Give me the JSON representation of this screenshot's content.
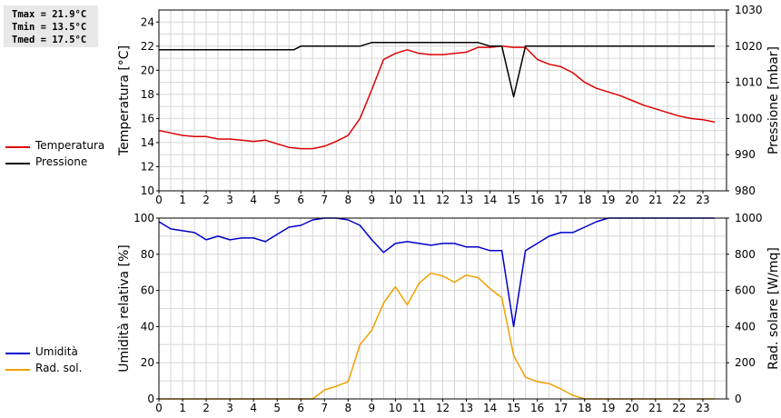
{
  "stats": {
    "tmax": "Tmax = 21.9°C",
    "tmin": "Tmin = 13.5°C",
    "tmed": "Tmed = 17.5°C"
  },
  "legend_top": [
    {
      "label": "Temperatura",
      "color": "#dd0000"
    },
    {
      "label": "Pressione",
      "color": "#000000"
    }
  ],
  "legend_bottom": [
    {
      "label": "Umidità",
      "color": "#0000cc"
    },
    {
      "label": "Rad. sol.",
      "color": "#f0a000"
    }
  ],
  "chart_data": [
    {
      "type": "line",
      "xlim": [
        0,
        24
      ],
      "x_ticks": [
        0,
        1,
        2,
        3,
        4,
        5,
        6,
        7,
        8,
        9,
        10,
        11,
        12,
        13,
        14,
        15,
        16,
        17,
        18,
        19,
        20,
        21,
        22,
        23
      ],
      "ylabel": "Temperatura [°C]",
      "ylim": [
        10,
        25
      ],
      "y_ticks": [
        10,
        12,
        14,
        16,
        18,
        20,
        22,
        24
      ],
      "y2label": "Pressione [mbar]",
      "y2lim": [
        980,
        1030
      ],
      "y2_ticks": [
        980,
        990,
        1000,
        1010,
        1020,
        1030
      ],
      "grid": true,
      "series": [
        {
          "name": "Temperatura",
          "axis": "left",
          "color": "#dd0000",
          "x": [
            0,
            0.5,
            1,
            1.5,
            2,
            2.5,
            3,
            3.5,
            4,
            4.5,
            5,
            5.5,
            6,
            6.5,
            7,
            7.5,
            8,
            8.5,
            9,
            9.5,
            10,
            10.5,
            11,
            11.5,
            12,
            12.5,
            13,
            13.5,
            14,
            14.5,
            15,
            15.5,
            16,
            16.5,
            17,
            17.5,
            18,
            18.5,
            19,
            19.5,
            20,
            20.5,
            21,
            21.5,
            22,
            22.5,
            23,
            23.5
          ],
          "values": [
            15.0,
            14.8,
            14.6,
            14.5,
            14.5,
            14.3,
            14.3,
            14.2,
            14.1,
            14.2,
            13.9,
            13.6,
            13.5,
            13.5,
            13.7,
            14.1,
            14.6,
            16.0,
            18.4,
            20.9,
            21.4,
            21.7,
            21.4,
            21.3,
            21.3,
            21.4,
            21.5,
            21.9,
            21.9,
            22.0,
            21.9,
            21.9,
            20.9,
            20.5,
            20.3,
            19.8,
            19.0,
            18.5,
            18.2,
            17.9,
            17.5,
            17.1,
            16.8,
            16.5,
            16.2,
            16.0,
            15.9,
            15.7
          ]
        },
        {
          "name": "Pressione",
          "axis": "right",
          "color": "#000000",
          "x": [
            0,
            5.7,
            6,
            6.5,
            8.5,
            9,
            9.5,
            13.5,
            14,
            14.5,
            15,
            15.5,
            23.5
          ],
          "values": [
            1019,
            1019,
            1020,
            1020,
            1020,
            1021,
            1021,
            1021,
            1020,
            1020,
            1006,
            1020,
            1020
          ]
        }
      ]
    },
    {
      "type": "line",
      "xlim": [
        0,
        24
      ],
      "x_ticks": [
        0,
        1,
        2,
        3,
        4,
        5,
        6,
        7,
        8,
        9,
        10,
        11,
        12,
        13,
        14,
        15,
        16,
        17,
        18,
        19,
        20,
        21,
        22,
        23
      ],
      "ylabel": "Umidità relativa [%]",
      "ylim": [
        0,
        100
      ],
      "y_ticks": [
        0,
        20,
        40,
        60,
        80,
        100
      ],
      "y2label": "Rad. solare [W/mq]",
      "y2lim": [
        0,
        1000
      ],
      "y2_ticks": [
        0,
        200,
        400,
        600,
        800,
        1000
      ],
      "grid": true,
      "series": [
        {
          "name": "Umidità",
          "axis": "left",
          "color": "#0000cc",
          "x": [
            0,
            0.5,
            1,
            1.5,
            2,
            2.5,
            3,
            3.5,
            4,
            4.5,
            5,
            5.5,
            6,
            6.5,
            7,
            7.5,
            8,
            8.5,
            9,
            9.5,
            10,
            10.5,
            11,
            11.5,
            12,
            12.5,
            13,
            13.5,
            14,
            14.5,
            15,
            15.5,
            16,
            16.5,
            17,
            17.5,
            18,
            18.5,
            19,
            19.5,
            20,
            20.5,
            21,
            21.5,
            22,
            22.5,
            23,
            23.5
          ],
          "values": [
            98,
            94,
            93,
            92,
            88,
            90,
            88,
            89,
            89,
            87,
            91,
            95,
            96,
            99,
            100,
            100,
            99,
            96,
            88,
            81,
            86,
            87,
            86,
            85,
            86,
            86,
            84,
            84,
            82,
            82,
            40,
            82,
            86,
            90,
            92,
            92,
            95,
            98,
            100,
            100,
            100,
            100,
            100,
            100,
            100,
            100,
            100,
            100
          ]
        },
        {
          "name": "Rad. sol.",
          "axis": "right",
          "color": "#f0a000",
          "x": [
            0,
            0.5,
            1,
            1.5,
            2,
            2.5,
            3,
            3.5,
            4,
            4.5,
            5,
            5.5,
            6,
            6.5,
            7,
            7.5,
            8,
            8.5,
            9,
            9.5,
            10,
            10.5,
            11,
            11.5,
            12,
            12.5,
            13,
            13.5,
            14,
            14.5,
            15,
            15.5,
            16,
            16.5,
            17,
            17.5,
            18,
            18.5,
            19,
            19.5,
            20,
            20.5,
            21,
            21.5,
            22,
            22.5,
            23,
            23.5
          ],
          "values": [
            0,
            0,
            0,
            0,
            0,
            0,
            0,
            0,
            0,
            0,
            0,
            0,
            0,
            0,
            50,
            70,
            95,
            300,
            380,
            530,
            620,
            520,
            640,
            695,
            680,
            645,
            685,
            670,
            610,
            560,
            240,
            120,
            95,
            85,
            55,
            20,
            0,
            0,
            0,
            0,
            0,
            0,
            0,
            0,
            0,
            0,
            0,
            0
          ]
        }
      ]
    }
  ]
}
